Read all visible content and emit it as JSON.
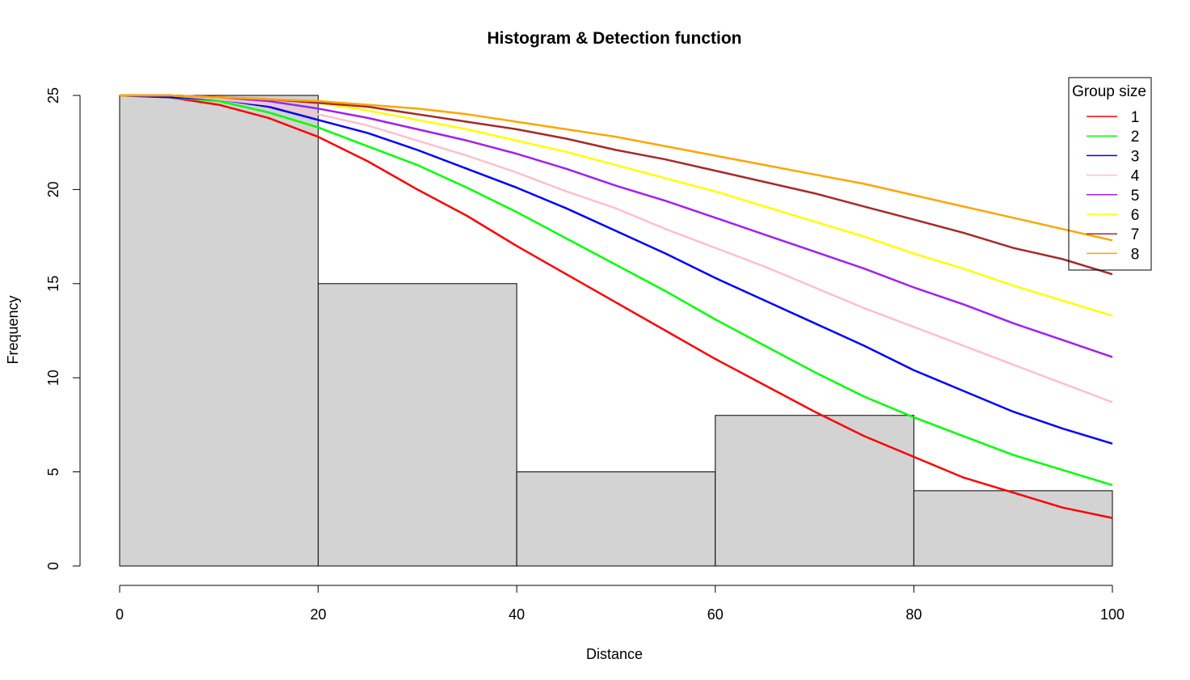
{
  "chart_data": {
    "type": "bar",
    "title": "Histogram & Detection function",
    "xlabel": "Distance",
    "ylabel": "Frequency",
    "xlim": [
      0,
      100
    ],
    "ylim": [
      0,
      25
    ],
    "x_ticks": [
      "0",
      "20",
      "40",
      "60",
      "80",
      "100"
    ],
    "y_ticks": [
      "0",
      "5",
      "10",
      "15",
      "20",
      "25"
    ],
    "bar_fill": "#d3d3d3",
    "histogram": {
      "bins": [
        [
          0,
          20
        ],
        [
          20,
          40
        ],
        [
          40,
          60
        ],
        [
          60,
          80
        ],
        [
          80,
          100
        ]
      ],
      "values": [
        25,
        15,
        5,
        8,
        4
      ]
    },
    "legend": {
      "title": "Group size",
      "position": "top-right"
    },
    "curve_x": [
      0,
      5,
      10,
      15,
      20,
      25,
      30,
      35,
      40,
      45,
      50,
      55,
      60,
      65,
      70,
      75,
      80,
      85,
      90,
      95,
      100
    ],
    "series": [
      {
        "name": "1",
        "color": "#ff0000",
        "values": [
          25,
          24.9,
          24.5,
          23.8,
          22.8,
          21.5,
          20.0,
          18.6,
          17.0,
          15.5,
          14.0,
          12.5,
          11.0,
          9.6,
          8.2,
          6.9,
          5.8,
          4.7,
          3.9,
          3.1,
          2.55
        ]
      },
      {
        "name": "2",
        "color": "#00ff00",
        "values": [
          25,
          24.9,
          24.7,
          24.1,
          23.3,
          22.3,
          21.3,
          20.1,
          18.8,
          17.4,
          16.0,
          14.6,
          13.1,
          11.7,
          10.3,
          9.0,
          7.9,
          6.9,
          5.9,
          5.1,
          4.3
        ]
      },
      {
        "name": "3",
        "color": "#0000ff",
        "values": [
          25,
          24.9,
          24.8,
          24.4,
          23.7,
          23.0,
          22.1,
          21.1,
          20.1,
          19.0,
          17.8,
          16.6,
          15.3,
          14.1,
          12.9,
          11.7,
          10.4,
          9.3,
          8.2,
          7.3,
          6.5
        ]
      },
      {
        "name": "4",
        "color": "#ffc0cb",
        "values": [
          25,
          25.0,
          24.8,
          24.5,
          24.0,
          23.4,
          22.6,
          21.8,
          20.9,
          19.9,
          19.0,
          17.9,
          16.9,
          15.9,
          14.8,
          13.7,
          12.7,
          11.7,
          10.7,
          9.7,
          8.7
        ]
      },
      {
        "name": "5",
        "color": "#a020f0",
        "values": [
          25,
          25.0,
          24.9,
          24.7,
          24.3,
          23.8,
          23.2,
          22.6,
          21.9,
          21.1,
          20.2,
          19.4,
          18.5,
          17.6,
          16.7,
          15.8,
          14.8,
          13.9,
          12.9,
          12.0,
          11.1
        ]
      },
      {
        "name": "6",
        "color": "#ffff00",
        "values": [
          25,
          25.0,
          24.9,
          24.8,
          24.6,
          24.2,
          23.7,
          23.2,
          22.6,
          22.0,
          21.3,
          20.6,
          19.9,
          19.1,
          18.3,
          17.5,
          16.6,
          15.8,
          14.9,
          14.1,
          13.3
        ]
      },
      {
        "name": "7",
        "color": "#a52a2a",
        "values": [
          25,
          25.0,
          24.9,
          24.8,
          24.6,
          24.4,
          24.0,
          23.6,
          23.2,
          22.7,
          22.1,
          21.6,
          21.0,
          20.4,
          19.8,
          19.1,
          18.4,
          17.7,
          16.9,
          16.3,
          15.5
        ]
      },
      {
        "name": "8",
        "color": "#ffa500",
        "values": [
          25,
          25.0,
          24.9,
          24.8,
          24.7,
          24.5,
          24.3,
          24.0,
          23.6,
          23.2,
          22.8,
          22.3,
          21.8,
          21.3,
          20.8,
          20.3,
          19.7,
          19.1,
          18.5,
          17.9,
          17.3
        ]
      }
    ]
  }
}
